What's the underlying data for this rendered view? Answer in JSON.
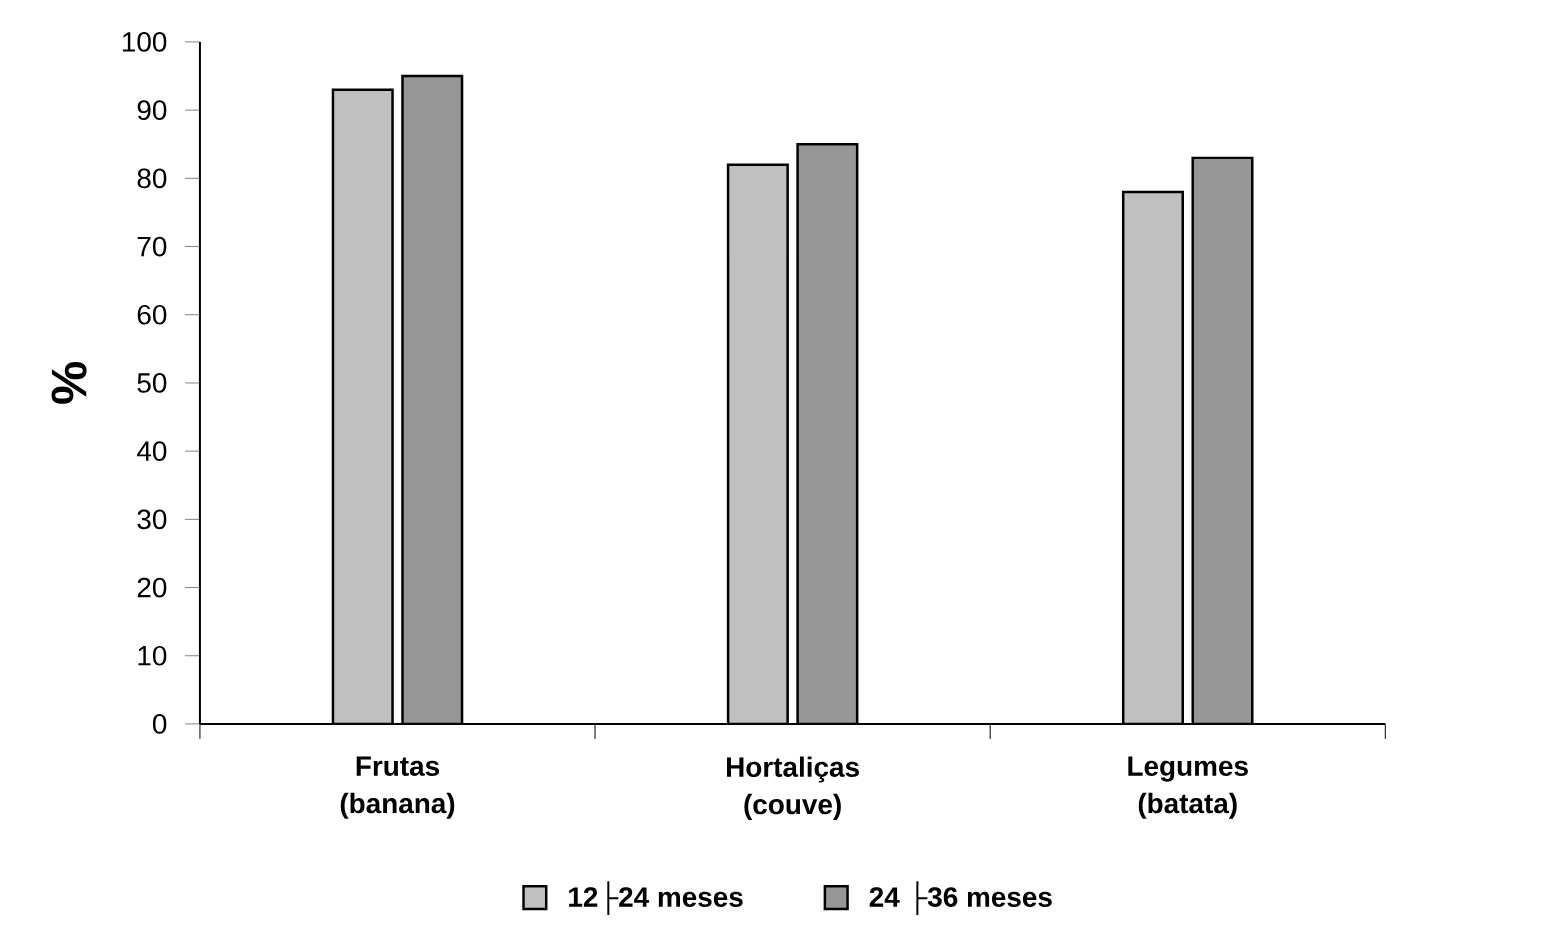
{
  "chart_data": {
    "type": "bar",
    "ylabel": "%",
    "categories": [
      "Frutas (banana)",
      "Hortaliças (couve)",
      "Legumes (batata)"
    ],
    "series": [
      {
        "name": "12├24 meses",
        "color": "#c0c0c0",
        "values": [
          93,
          82,
          78
        ]
      },
      {
        "name": "24 ├36 meses",
        "color": "#969696",
        "values": [
          95,
          85,
          83
        ]
      }
    ],
    "ylim": [
      0,
      100
    ],
    "yticks": [
      0,
      10,
      20,
      30,
      40,
      50,
      60,
      70,
      80,
      90,
      100
    ],
    "legend": "bottom",
    "grid": false
  }
}
